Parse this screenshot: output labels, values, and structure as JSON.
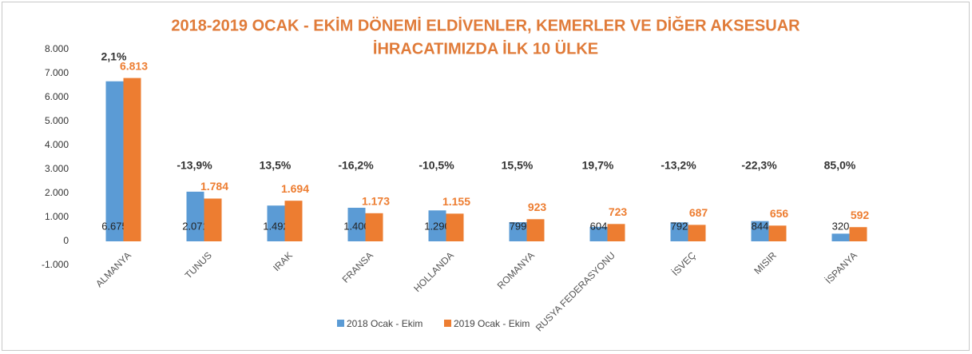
{
  "chart_data": {
    "type": "bar",
    "title": [
      "2018-2019 OCAK - EKİM DÖNEMİ ELDİVENLER, KEMERLER VE DİĞER AKSESUAR",
      "İHRACATIMIZDA İLK  10 ÜLKE"
    ],
    "categories": [
      "ALMANYA",
      "TUNUS",
      "IRAK",
      "FRANSA",
      "HOLLANDA",
      "ROMANYA",
      "RUSYA FEDERASYONU",
      "İSVEÇ",
      "MISIR",
      "İSPANYA"
    ],
    "series": [
      {
        "name": "2018 Ocak - Ekim",
        "color": "#5b9bd5",
        "values": [
          6675,
          2071,
          1492,
          1400,
          1290,
          799,
          604,
          792,
          844,
          320
        ],
        "value_labels": [
          "6.675",
          "2.071",
          "1.492",
          "1.400",
          "1.290",
          "799",
          "604",
          "792",
          "844",
          "320"
        ]
      },
      {
        "name": "2019 Ocak - Ekim",
        "color": "#ed7d31",
        "values": [
          6813,
          1784,
          1694,
          1173,
          1155,
          923,
          723,
          687,
          656,
          592
        ],
        "value_labels": [
          "6.813",
          "1.784",
          "1.694",
          "1.173",
          "1.155",
          "923",
          "723",
          "687",
          "656",
          "592"
        ]
      }
    ],
    "change_labels": [
      "2,1%",
      "-13,9%",
      "13,5%",
      "-16,2%",
      "-10,5%",
      "15,5%",
      "19,7%",
      "-13,2%",
      "-22,3%",
      "85,0%"
    ],
    "ylim": [
      -1000,
      8000
    ],
    "yticks": [
      {
        "value": -1000,
        "label": "-1.000"
      },
      0,
      {
        "value": 1000,
        "label": "1.000"
      },
      {
        "value": 2000,
        "label": "2.000"
      },
      {
        "value": 3000,
        "label": "3.000"
      },
      {
        "value": 4000,
        "label": "4.000"
      },
      {
        "value": 5000,
        "label": "5.000"
      },
      {
        "value": 6000,
        "label": "6.000"
      },
      {
        "value": 7000,
        "label": "7.000"
      },
      {
        "value": 8000,
        "label": "8.000"
      }
    ],
    "grid": false
  }
}
